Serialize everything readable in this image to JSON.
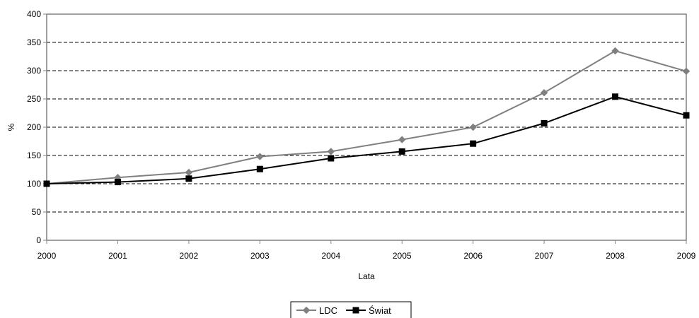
{
  "chart_data": {
    "type": "line",
    "title": "",
    "xlabel": "Lata",
    "ylabel": "%",
    "x": [
      "2000",
      "2001",
      "2002",
      "2003",
      "2004",
      "2005",
      "2006",
      "2007",
      "2008",
      "2009"
    ],
    "yticks": [
      "0",
      "50",
      "100",
      "150",
      "200",
      "250",
      "300",
      "350",
      "400"
    ],
    "ylim": [
      0,
      400
    ],
    "grid": "horizontal dashed",
    "legend_position": "bottom-center",
    "series": [
      {
        "name": "LDC",
        "color": "#808080",
        "marker": "diamond",
        "values": [
          100,
          111,
          120,
          148,
          157,
          178,
          200,
          261,
          335,
          299
        ]
      },
      {
        "name": "Świat",
        "color": "#000000",
        "marker": "square",
        "values": [
          100,
          103,
          109,
          126,
          145,
          157,
          171,
          207,
          254,
          221
        ]
      }
    ]
  }
}
